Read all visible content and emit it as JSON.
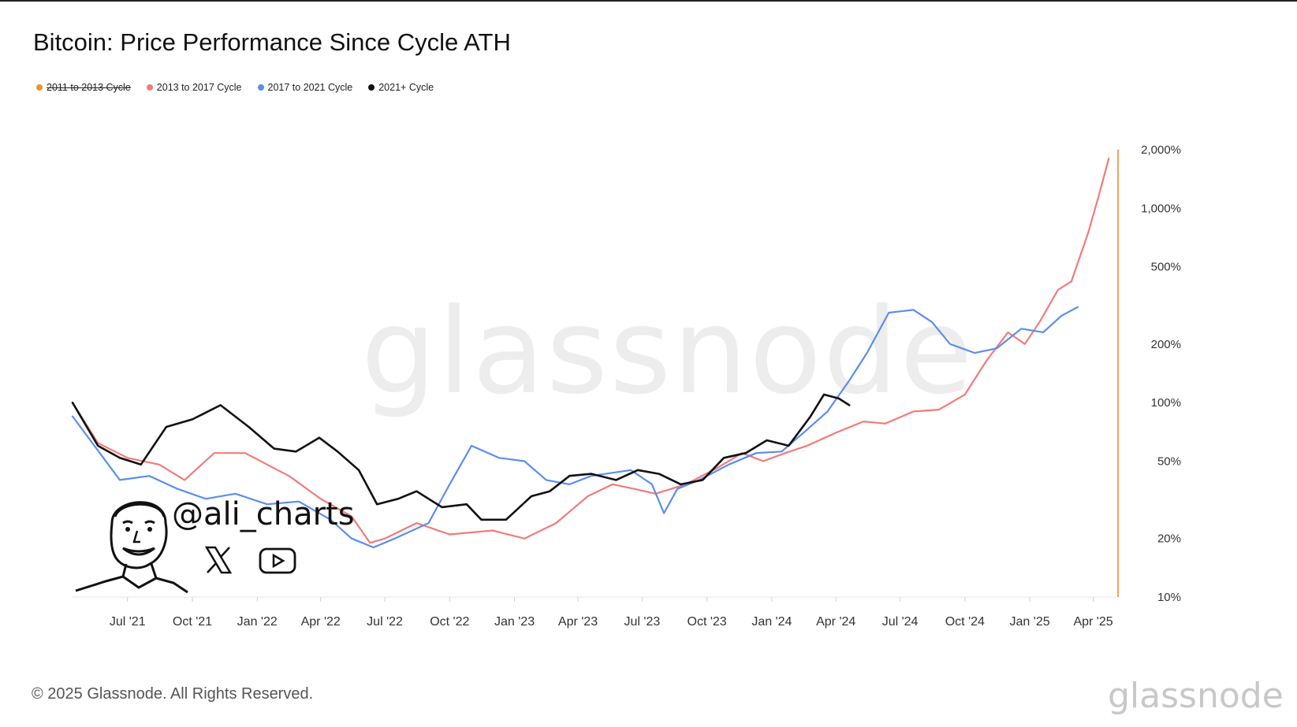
{
  "title": "Bitcoin: Price Performance Since Cycle ATH",
  "legend": [
    {
      "label": "2011 to 2013 Cycle",
      "color": "#f0922b",
      "disabled": true
    },
    {
      "label": "2013 to 2017 Cycle",
      "color": "#f27b7b",
      "disabled": false
    },
    {
      "label": "2017 to 2021 Cycle",
      "color": "#5b8def",
      "disabled": false
    },
    {
      "label": "2021+ Cycle",
      "color": "#111111",
      "disabled": false
    }
  ],
  "watermark": "glassnode",
  "footer": {
    "copyright": "© 2025 Glassnode. All Rights Reserved.",
    "brand": "glassnode"
  },
  "author": {
    "handle": "@ali_charts",
    "icons": [
      "avatar-illustration",
      "x-logo-icon",
      "youtube-icon"
    ]
  },
  "chart_data": {
    "type": "line",
    "title": "Bitcoin: Price Performance Since Cycle ATH",
    "x_ticks": [
      "Jul '21",
      "Oct '21",
      "Jan '22",
      "Apr '22",
      "Jul '22",
      "Oct '22",
      "Jan '23",
      "Apr '23",
      "Jul '23",
      "Oct '23",
      "Jan '24",
      "Apr '24",
      "Jul '24",
      "Oct '24",
      "Jan '25",
      "Apr '25"
    ],
    "y_scale": "log",
    "y_ticks": [
      {
        "value": 10,
        "label": "10%"
      },
      {
        "value": 20,
        "label": "20%"
      },
      {
        "value": 50,
        "label": "50%"
      },
      {
        "value": 100,
        "label": "100%"
      },
      {
        "value": 200,
        "label": "200%"
      },
      {
        "value": 500,
        "label": "500%"
      },
      {
        "value": 1000,
        "label": "1,000%"
      },
      {
        "value": 2000,
        "label": "2,000%"
      }
    ],
    "ylim": [
      10,
      2000
    ],
    "xlim": [
      "2021-04-14",
      "2025-04-25"
    ],
    "grid": false,
    "legend_position": "top-left",
    "series": [
      {
        "name": "2013 to 2017 Cycle",
        "color": "#f27b7b",
        "points": [
          [
            "2021-04-14",
            100
          ],
          [
            "2021-05-20",
            62
          ],
          [
            "2021-07-01",
            52
          ],
          [
            "2021-08-15",
            48
          ],
          [
            "2021-09-20",
            40
          ],
          [
            "2021-11-01",
            55
          ],
          [
            "2021-12-15",
            55
          ],
          [
            "2022-01-15",
            48
          ],
          [
            "2022-02-15",
            42
          ],
          [
            "2022-04-01",
            32
          ],
          [
            "2022-05-15",
            26
          ],
          [
            "2022-06-10",
            19
          ],
          [
            "2022-07-01",
            20
          ],
          [
            "2022-08-15",
            24
          ],
          [
            "2022-10-01",
            21
          ],
          [
            "2022-12-01",
            22
          ],
          [
            "2023-01-15",
            20
          ],
          [
            "2023-03-01",
            24
          ],
          [
            "2023-04-15",
            33
          ],
          [
            "2023-05-20",
            38
          ],
          [
            "2023-06-20",
            36
          ],
          [
            "2023-07-20",
            34
          ],
          [
            "2023-09-01",
            38
          ],
          [
            "2023-10-15",
            46
          ],
          [
            "2023-11-20",
            55
          ],
          [
            "2023-12-20",
            50
          ],
          [
            "2024-01-20",
            55
          ],
          [
            "2024-02-20",
            60
          ],
          [
            "2024-04-01",
            70
          ],
          [
            "2024-05-10",
            80
          ],
          [
            "2024-06-10",
            78
          ],
          [
            "2024-07-20",
            90
          ],
          [
            "2024-08-25",
            92
          ],
          [
            "2024-10-01",
            110
          ],
          [
            "2024-11-01",
            165
          ],
          [
            "2024-12-01",
            230
          ],
          [
            "2024-12-25",
            200
          ],
          [
            "2025-01-15",
            260
          ],
          [
            "2025-02-10",
            380
          ],
          [
            "2025-03-01",
            420
          ],
          [
            "2025-03-25",
            750
          ],
          [
            "2025-04-10",
            1200
          ],
          [
            "2025-04-23",
            1800
          ]
        ]
      },
      {
        "name": "2017 to 2021 Cycle",
        "color": "#5b8def",
        "points": [
          [
            "2021-04-14",
            85
          ],
          [
            "2021-05-15",
            60
          ],
          [
            "2021-06-20",
            40
          ],
          [
            "2021-08-01",
            42
          ],
          [
            "2021-09-10",
            36
          ],
          [
            "2021-10-20",
            32
          ],
          [
            "2021-12-01",
            34
          ],
          [
            "2022-01-15",
            30
          ],
          [
            "2022-03-01",
            31
          ],
          [
            "2022-04-15",
            25
          ],
          [
            "2022-05-15",
            20
          ],
          [
            "2022-06-15",
            18
          ],
          [
            "2022-07-15",
            20
          ],
          [
            "2022-09-01",
            24
          ],
          [
            "2022-10-01",
            38
          ],
          [
            "2022-11-01",
            60
          ],
          [
            "2022-12-10",
            52
          ],
          [
            "2023-01-15",
            50
          ],
          [
            "2023-02-15",
            40
          ],
          [
            "2023-03-20",
            38
          ],
          [
            "2023-04-20",
            42
          ],
          [
            "2023-06-15",
            45
          ],
          [
            "2023-07-15",
            38
          ],
          [
            "2023-08-01",
            27
          ],
          [
            "2023-08-20",
            36
          ],
          [
            "2023-09-20",
            40
          ],
          [
            "2023-11-01",
            48
          ],
          [
            "2023-12-10",
            55
          ],
          [
            "2024-01-15",
            56
          ],
          [
            "2024-02-15",
            70
          ],
          [
            "2024-03-20",
            90
          ],
          [
            "2024-04-20",
            130
          ],
          [
            "2024-05-15",
            180
          ],
          [
            "2024-06-15",
            290
          ],
          [
            "2024-07-20",
            300
          ],
          [
            "2024-08-15",
            260
          ],
          [
            "2024-09-10",
            200
          ],
          [
            "2024-10-15",
            180
          ],
          [
            "2024-11-15",
            190
          ],
          [
            "2024-12-20",
            240
          ],
          [
            "2025-01-20",
            230
          ],
          [
            "2025-02-15",
            280
          ],
          [
            "2025-03-10",
            310
          ]
        ]
      },
      {
        "name": "2021+ Cycle",
        "color": "#111111",
        "points": [
          [
            "2021-04-14",
            100
          ],
          [
            "2021-05-20",
            60
          ],
          [
            "2021-06-20",
            52
          ],
          [
            "2021-07-20",
            48
          ],
          [
            "2021-08-25",
            75
          ],
          [
            "2021-10-01",
            82
          ],
          [
            "2021-11-10",
            97
          ],
          [
            "2021-12-20",
            75
          ],
          [
            "2022-01-25",
            58
          ],
          [
            "2022-02-25",
            56
          ],
          [
            "2022-03-30",
            66
          ],
          [
            "2022-04-25",
            56
          ],
          [
            "2022-05-25",
            45
          ],
          [
            "2022-06-20",
            30
          ],
          [
            "2022-07-20",
            32
          ],
          [
            "2022-08-15",
            35
          ],
          [
            "2022-09-20",
            29
          ],
          [
            "2022-10-25",
            30
          ],
          [
            "2022-11-15",
            25
          ],
          [
            "2022-12-20",
            25
          ],
          [
            "2023-01-25",
            33
          ],
          [
            "2023-02-20",
            35
          ],
          [
            "2023-03-20",
            42
          ],
          [
            "2023-04-20",
            43
          ],
          [
            "2023-05-25",
            40
          ],
          [
            "2023-06-25",
            45
          ],
          [
            "2023-07-25",
            43
          ],
          [
            "2023-08-25",
            38
          ],
          [
            "2023-09-25",
            40
          ],
          [
            "2023-10-25",
            52
          ],
          [
            "2023-11-25",
            55
          ],
          [
            "2023-12-25",
            64
          ],
          [
            "2024-01-25",
            60
          ],
          [
            "2024-02-25",
            85
          ],
          [
            "2024-03-15",
            110
          ],
          [
            "2024-04-05",
            105
          ],
          [
            "2024-04-20",
            97
          ]
        ]
      }
    ]
  }
}
